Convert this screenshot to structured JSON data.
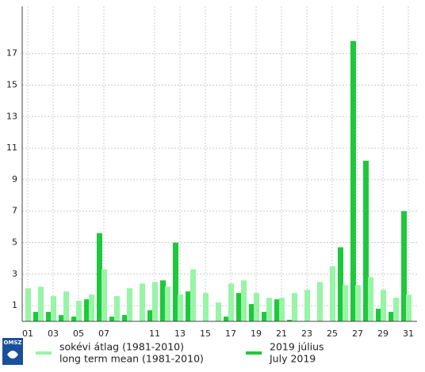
{
  "chart_data": {
    "type": "bar",
    "categories": [
      "01",
      null,
      "03",
      null,
      "05",
      null,
      "07",
      null,
      null,
      null,
      "11",
      null,
      "13",
      null,
      "15",
      null,
      "17",
      null,
      "19",
      null,
      "21",
      null,
      "23",
      null,
      "25",
      null,
      "27",
      null,
      "29",
      null,
      "31"
    ],
    "series": [
      {
        "name": "sokévi átlag (1981-2010)",
        "name_en": "long term mean (1981-2010)",
        "color": "#98f4a6",
        "values": [
          2.1,
          2.2,
          1.6,
          1.9,
          1.3,
          1.7,
          3.3,
          1.6,
          2.1,
          2.4,
          2.5,
          2.2,
          1.7,
          3.3,
          1.8,
          1.2,
          2.4,
          2.6,
          1.8,
          1.5,
          1.5,
          1.8,
          2.0,
          2.5,
          3.5,
          2.3,
          2.3,
          2.8,
          2.0,
          1.5,
          1.7
        ]
      },
      {
        "name": "2019 július",
        "name_en": "July 2019",
        "color": "#1ec83c",
        "values": [
          0.6,
          0.6,
          0.4,
          0.3,
          1.4,
          5.6,
          0.3,
          0.4,
          0,
          0.7,
          2.6,
          5.0,
          1.9,
          0,
          0,
          0.3,
          1.8,
          1.1,
          0.6,
          1.4,
          0.1,
          0,
          0,
          0,
          4.7,
          17.8,
          10.2,
          0.8,
          0.6,
          7.0,
          null
        ]
      }
    ],
    "ylim": [
      0,
      20
    ],
    "yticks": [
      1,
      3,
      5,
      7,
      9,
      11,
      13,
      15,
      17
    ],
    "grid": true,
    "logo": "OMSZ"
  }
}
